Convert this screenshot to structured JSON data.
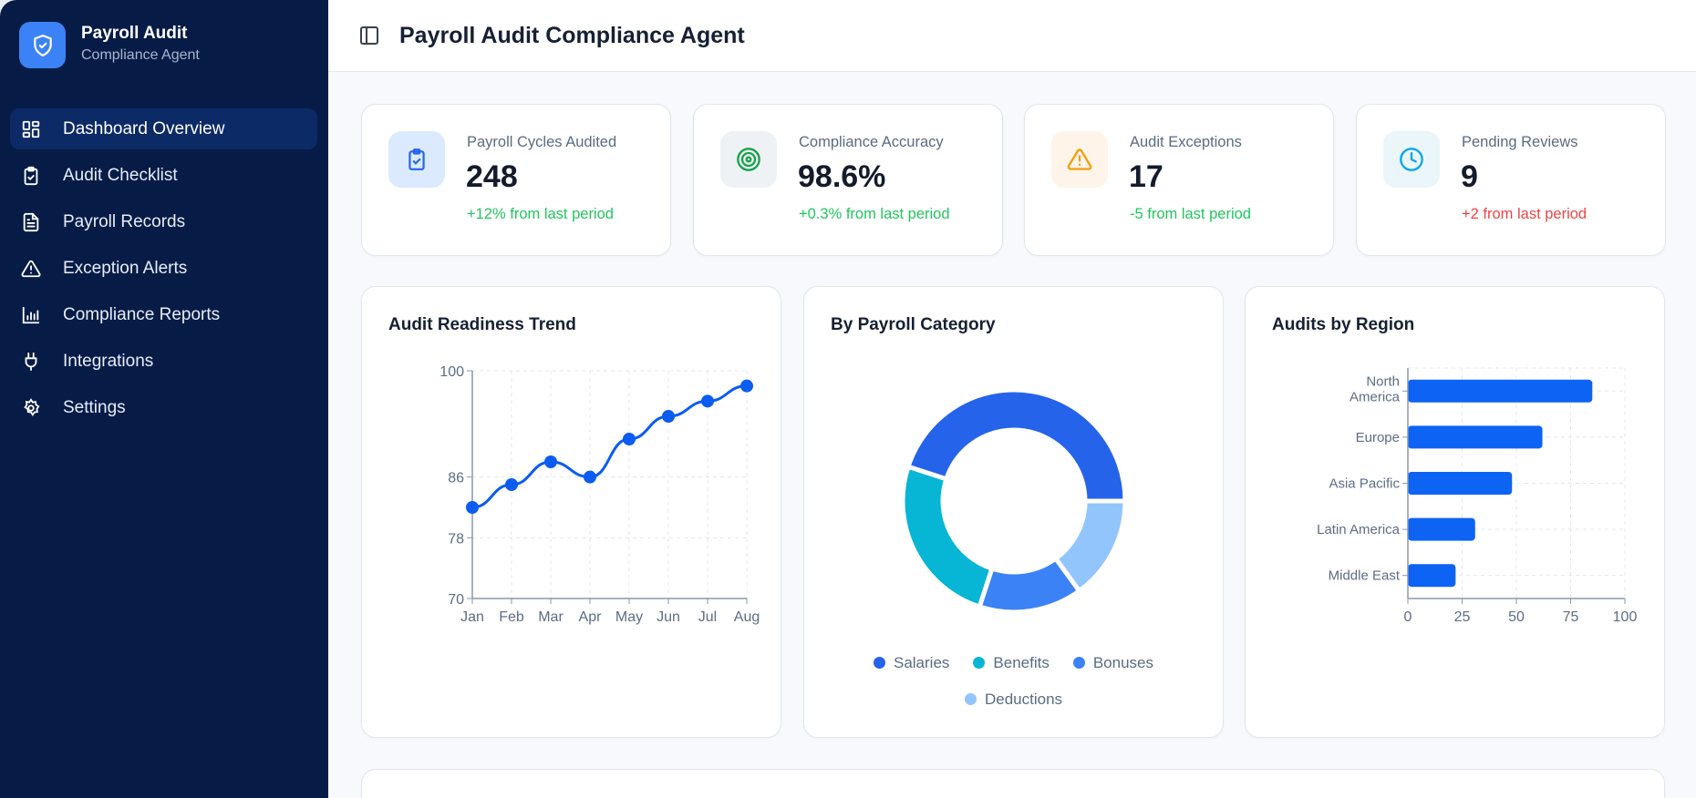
{
  "sidebar": {
    "brand_title": "Payroll Audit",
    "brand_subtitle": "Compliance Agent",
    "items": [
      {
        "label": "Dashboard Overview",
        "icon": "dashboard-grid-icon",
        "active": true
      },
      {
        "label": "Audit Checklist",
        "icon": "clipboard-check-icon"
      },
      {
        "label": "Payroll Records",
        "icon": "file-text-icon"
      },
      {
        "label": "Exception Alerts",
        "icon": "alert-triangle-icon"
      },
      {
        "label": "Compliance Reports",
        "icon": "bar-chart-icon"
      },
      {
        "label": "Integrations",
        "icon": "plug-icon"
      },
      {
        "label": "Settings",
        "icon": "gear-icon"
      }
    ]
  },
  "header": {
    "title": "Payroll Audit Compliance Agent"
  },
  "stats": [
    {
      "label": "Payroll Cycles Audited",
      "value": "248",
      "change": "+12% from last period",
      "change_color": "#22c55e",
      "icon": "clipboard-check-icon",
      "icon_color": "#2563eb",
      "icon_bg": "#dbeafe"
    },
    {
      "label": "Compliance Accuracy",
      "value": "98.6%",
      "change": "+0.3% from last period",
      "change_color": "#22c55e",
      "icon": "target-icon",
      "icon_color": "#16a34a",
      "icon_bg": "#eef2f5"
    },
    {
      "label": "Audit Exceptions",
      "value": "17",
      "change": "-5 from last period",
      "change_color": "#22c55e",
      "icon": "alert-triangle-icon",
      "icon_color": "#f59e0b",
      "icon_bg": "#fff4ea"
    },
    {
      "label": "Pending Reviews",
      "value": "9",
      "change": "+2 from last period",
      "change_color": "#ef4444",
      "icon": "clock-icon",
      "icon_color": "#0ea5e9",
      "icon_bg": "#eaf6f9"
    }
  ],
  "chart_data": [
    {
      "type": "line",
      "title": "Audit Readiness Trend",
      "categories": [
        "Jan",
        "Feb",
        "Mar",
        "Apr",
        "May",
        "Jun",
        "Jul",
        "Aug"
      ],
      "values": [
        82,
        85,
        88,
        86,
        91,
        94,
        96,
        98
      ],
      "yticks": [
        "70",
        "78",
        "86",
        "100"
      ],
      "ylim": [
        70,
        100
      ],
      "grid": true,
      "color": "#0b5cf0"
    },
    {
      "type": "pie",
      "title": "By Payroll Category",
      "donut": true,
      "slices": [
        {
          "name": "Salaries",
          "value": 45,
          "color": "#2563eb"
        },
        {
          "name": "Benefits",
          "value": 25,
          "color": "#06b6d4"
        },
        {
          "name": "Bonuses",
          "value": 15,
          "color": "#3b82f6"
        },
        {
          "name": "Deductions",
          "value": 15,
          "color": "#93c5fd"
        }
      ],
      "legend": "bottom"
    },
    {
      "type": "bar",
      "orientation": "horizontal",
      "title": "Audits by Region",
      "categories": [
        "North America",
        "Europe",
        "Asia Pacific",
        "Latin America",
        "Middle East"
      ],
      "values": [
        85,
        62,
        48,
        31,
        22
      ],
      "xticks": [
        "0",
        "25",
        "50",
        "75",
        "100"
      ],
      "xlim": [
        0,
        100
      ],
      "grid": true,
      "color": "#0d63f3"
    }
  ]
}
